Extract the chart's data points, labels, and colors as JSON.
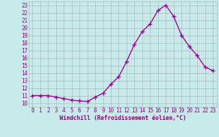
{
  "x": [
    0,
    1,
    2,
    3,
    4,
    5,
    6,
    7,
    8,
    9,
    10,
    11,
    12,
    13,
    14,
    15,
    16,
    17,
    18,
    19,
    20,
    21,
    22,
    23
  ],
  "y": [
    11,
    11,
    11,
    10.8,
    10.6,
    10.4,
    10.3,
    10.2,
    10.8,
    11.3,
    12.5,
    13.5,
    15.5,
    17.8,
    19.5,
    20.5,
    22.3,
    23.0,
    21.5,
    19.0,
    17.5,
    16.3,
    14.8,
    14.3
  ],
  "line_color": "#990099",
  "marker": "+",
  "marker_size": 4,
  "marker_lw": 1.0,
  "line_width": 1.0,
  "background_color": "#c8eaea",
  "grid_color": "#aabbbb",
  "xlabel": "Windchill (Refroidissement éolien,°C)",
  "ylabel": "",
  "xlim": [
    -0.5,
    23.5
  ],
  "ylim": [
    9.5,
    23.5
  ],
  "yticks": [
    10,
    11,
    12,
    13,
    14,
    15,
    16,
    17,
    18,
    19,
    20,
    21,
    22,
    23
  ],
  "xticks": [
    0,
    1,
    2,
    3,
    4,
    5,
    6,
    7,
    8,
    9,
    10,
    11,
    12,
    13,
    14,
    15,
    16,
    17,
    18,
    19,
    20,
    21,
    22,
    23
  ],
  "tick_color": "#880088",
  "label_color": "#880088",
  "tick_fontsize": 5.5,
  "xlabel_fontsize": 6.0,
  "font_family": "monospace"
}
